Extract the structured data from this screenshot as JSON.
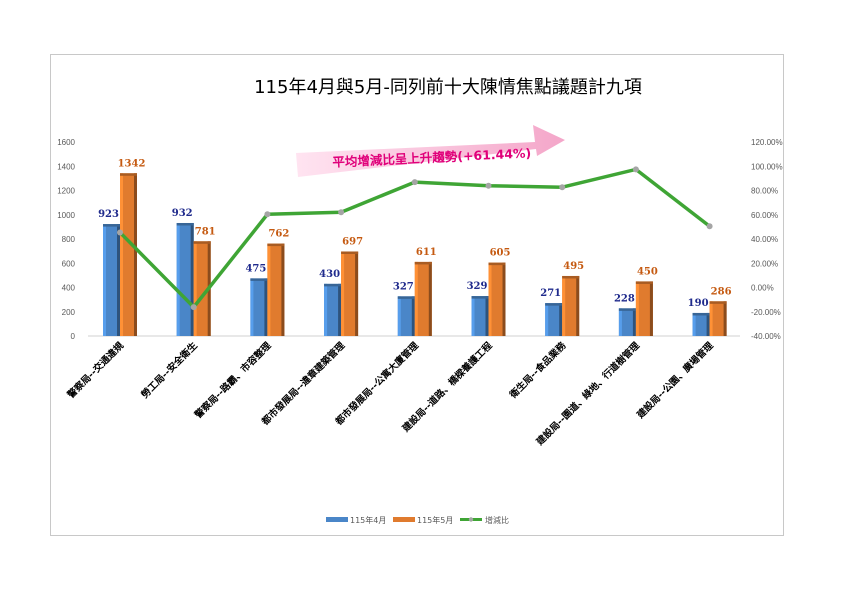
{
  "chart_data": {
    "type": "bar",
    "title": "115年4月與5月-同列前十大陳情焦點議題計九項",
    "categories": [
      "警察局--交通違規",
      "勞工局--安全衛生",
      "警察局--路霸、市容整理",
      "都市發展局--違章建築管理",
      "都市發展局--公寓大廈管理",
      "建設局--道路、橋樑養護工程",
      "衛生局--食品業務",
      "建設局--園道、綠地、行道樹管理",
      "建設局--公園、廣場管理"
    ],
    "series": [
      {
        "name": "115年4月",
        "type": "bar",
        "axis": "left",
        "color": "#4a86c8",
        "values": [
          923,
          932,
          475,
          430,
          327,
          329,
          271,
          228,
          190
        ]
      },
      {
        "name": "115年5月",
        "type": "bar",
        "axis": "left",
        "color": "#e07b2e",
        "values": [
          1342,
          781,
          762,
          697,
          611,
          605,
          495,
          450,
          286
        ]
      },
      {
        "name": "增減比",
        "type": "line",
        "axis": "right",
        "color": "#3fa535",
        "values": [
          45.4,
          -16.2,
          60.4,
          62.1,
          86.9,
          83.9,
          82.7,
          97.4,
          50.5
        ]
      }
    ],
    "y_left": {
      "min": 0,
      "max": 1600,
      "step": 200,
      "ticks": [
        "0",
        "200",
        "400",
        "600",
        "800",
        "1000",
        "1200",
        "1400",
        "1600"
      ]
    },
    "y_right": {
      "min": -40,
      "max": 120,
      "step": 20,
      "ticks": [
        "-40.00%",
        "-20.00%",
        "0.00%",
        "20.00%",
        "40.00%",
        "60.00%",
        "80.00%",
        "100.00%",
        "120.00%"
      ]
    },
    "annotation": "平均增減比呈上升趨勢(+61.44%)",
    "legend": [
      "115年4月",
      "115年5月",
      "增減比"
    ],
    "legend_position": "bottom",
    "grid": false
  }
}
